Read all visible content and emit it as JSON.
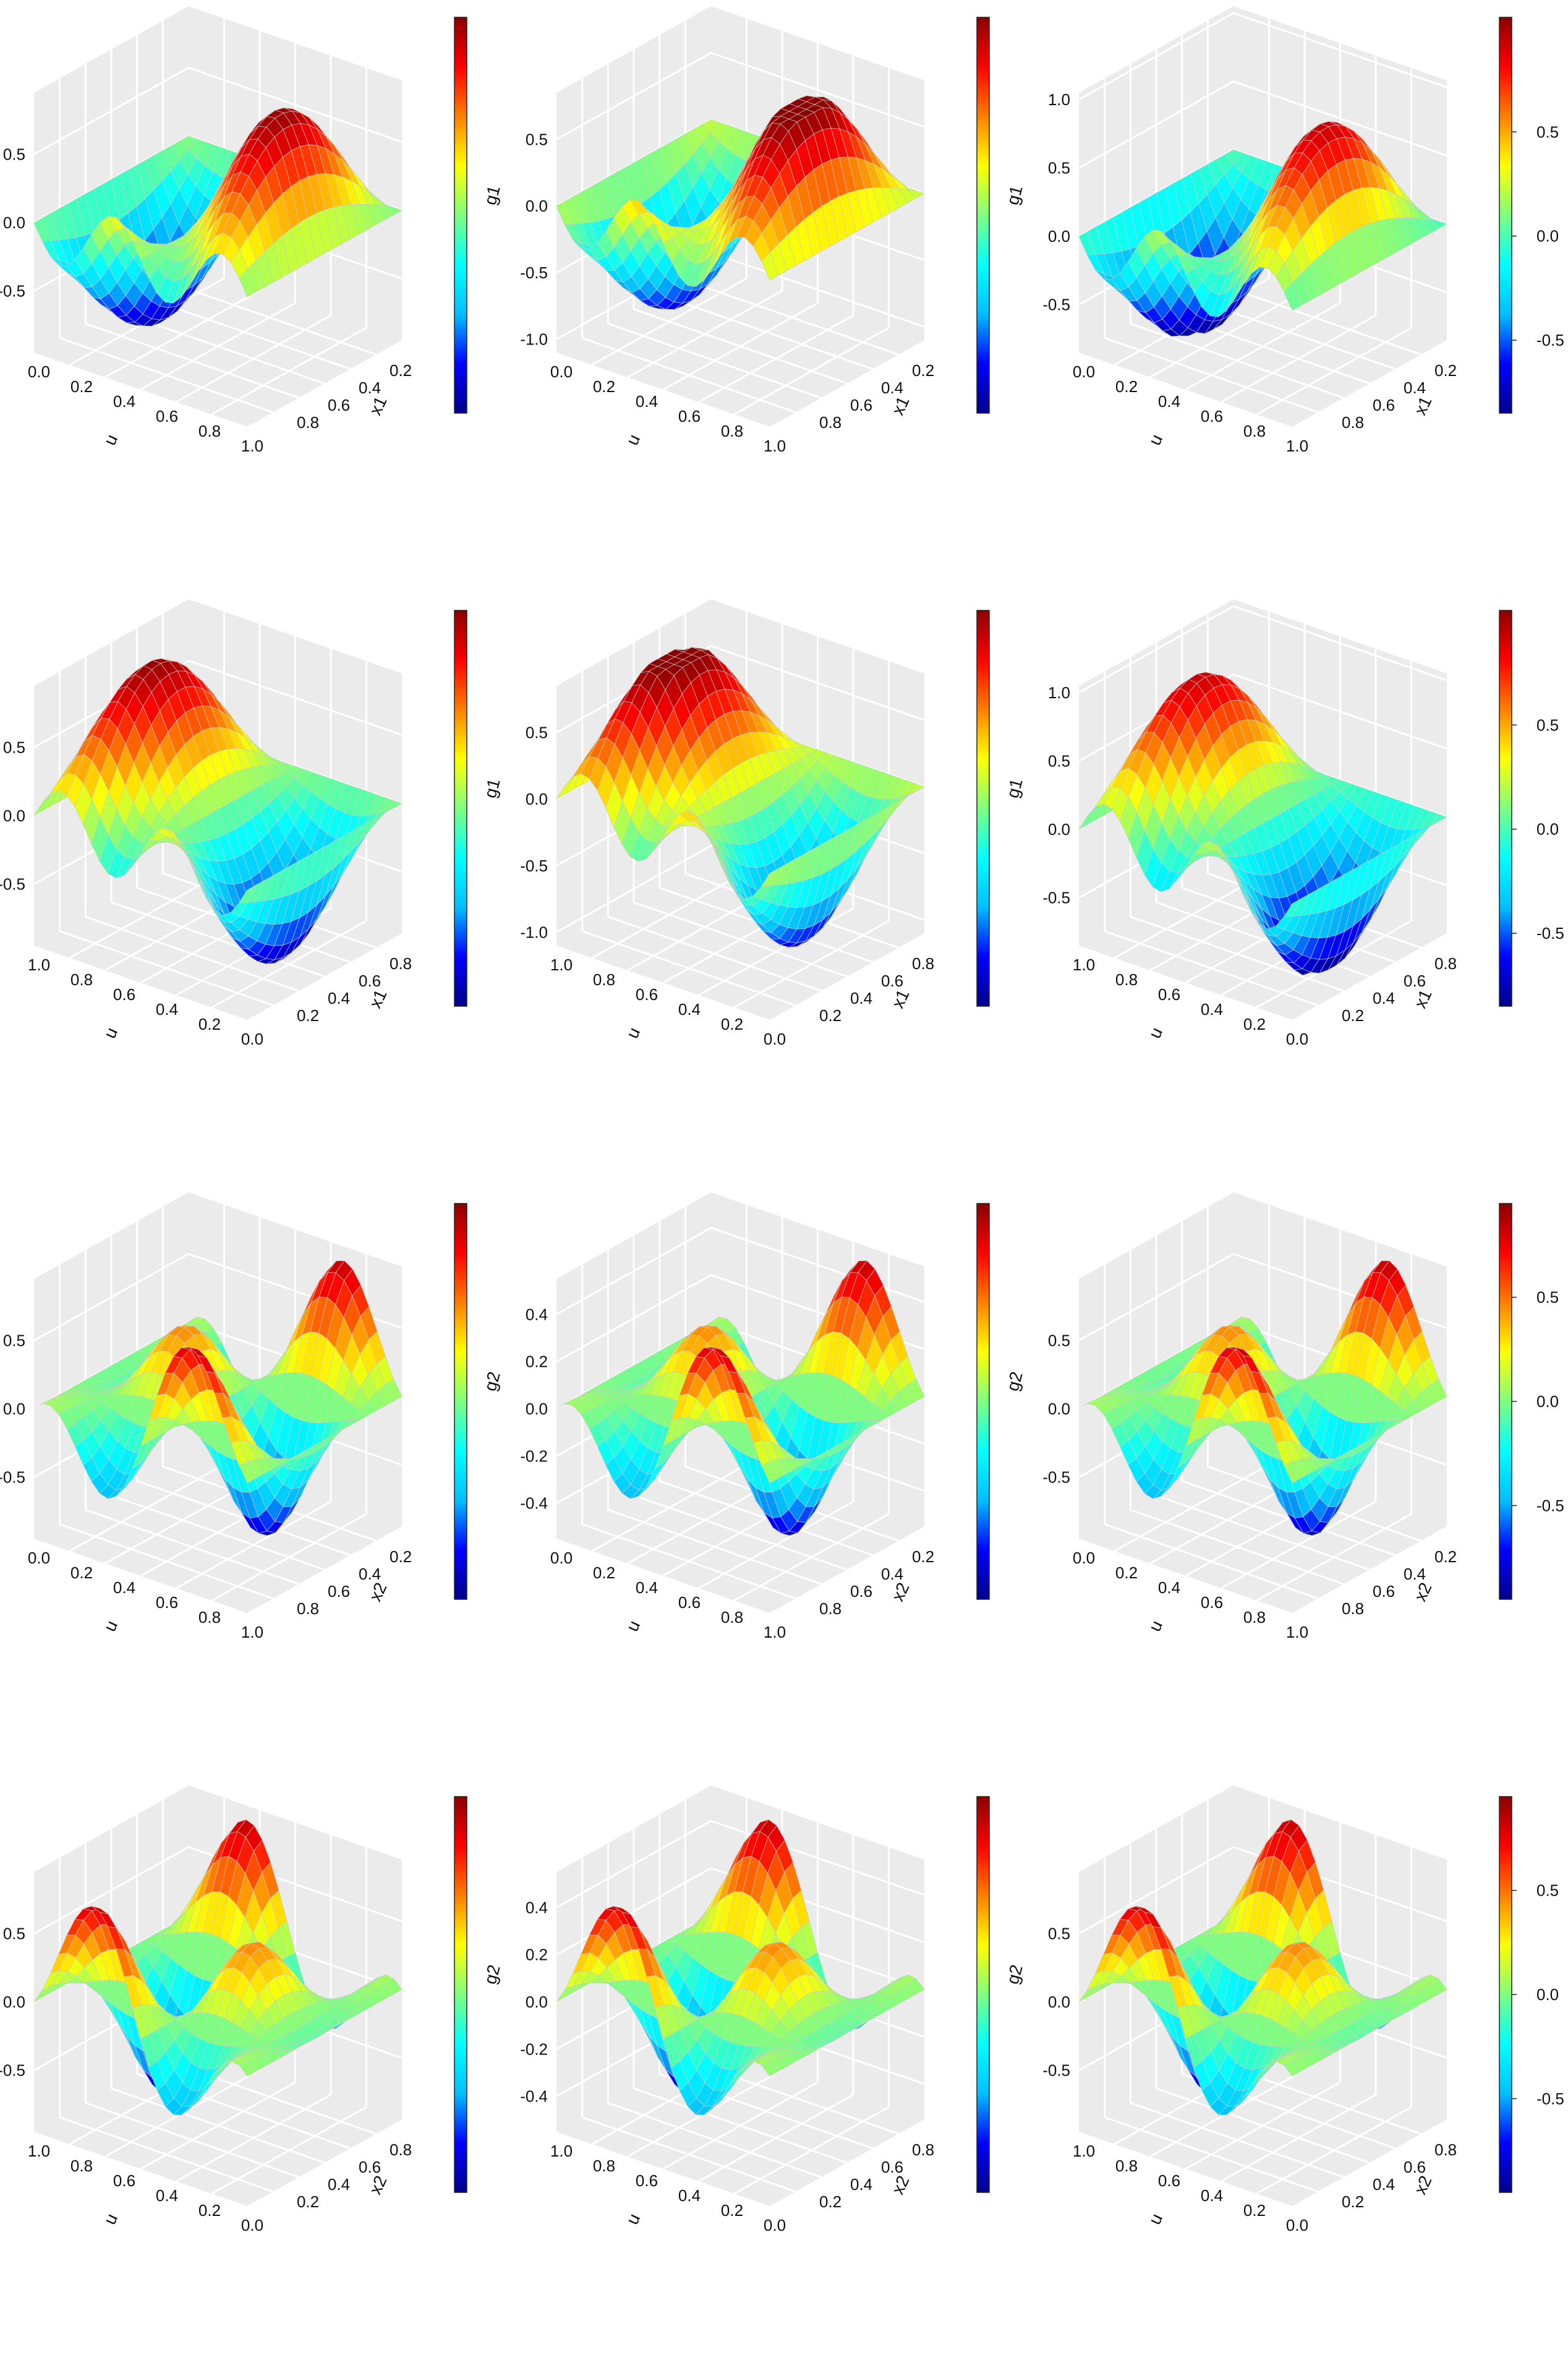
{
  "colors": {
    "pane": "#ebebeb",
    "gridline": "#ffffff",
    "mesh": "#c8c8c8",
    "colormap": [
      "#00008b",
      "#0000ff",
      "#00bfff",
      "#00ffff",
      "#7fff7f",
      "#ffff00",
      "#ff7f00",
      "#ff0000",
      "#8b0000"
    ]
  },
  "chart_data": [
    {
      "type": "surface",
      "row": 1,
      "col": 1,
      "zlabel": "g1",
      "xlabel": "u",
      "ylabel": "x1",
      "u_ticks": [
        "0.0",
        "0.2",
        "0.4",
        "0.6",
        "0.8",
        "1.0"
      ],
      "x_ticks": [
        "0.2",
        "0.4",
        "0.6",
        "0.8"
      ],
      "z_ticks": [
        "-0.5",
        "0.0",
        "0.5"
      ],
      "z_tick_values": [
        -0.5,
        0.0,
        0.5
      ],
      "zlim": [
        -0.95,
        0.95
      ],
      "colorbar_ticks": [],
      "colorbar_tick_values": [],
      "u_reversed": true,
      "var": "g1"
    },
    {
      "type": "surface",
      "row": 1,
      "col": 2,
      "zlabel": "g1",
      "xlabel": "u",
      "ylabel": "x1",
      "u_ticks": [
        "0.0",
        "0.2",
        "0.4",
        "0.6",
        "0.8",
        "1.0"
      ],
      "x_ticks": [
        "0.2",
        "0.4",
        "0.6",
        "0.8"
      ],
      "z_ticks": [
        "-1.0",
        "-0.5",
        "0.0",
        "0.5"
      ],
      "z_tick_values": [
        -1.0,
        -0.5,
        0.0,
        0.5
      ],
      "zlim": [
        -1.1,
        0.85
      ],
      "colorbar_ticks": [],
      "colorbar_tick_values": [],
      "u_reversed": true,
      "var": "g1"
    },
    {
      "type": "surface",
      "row": 1,
      "col": 3,
      "zlabel": "g1",
      "xlabel": "u",
      "ylabel": "x1",
      "u_ticks": [
        "0.0",
        "0.2",
        "0.4",
        "0.6",
        "0.8",
        "1.0"
      ],
      "x_ticks": [
        "0.2",
        "0.4",
        "0.6",
        "0.8"
      ],
      "z_ticks": [
        "-0.5",
        "0.0",
        "0.5",
        "1.0"
      ],
      "z_tick_values": [
        -0.5,
        0.0,
        0.5,
        1.0
      ],
      "zlim": [
        -0.85,
        1.05
      ],
      "colorbar_ticks": [
        "-0.5",
        "0.0",
        "0.5"
      ],
      "colorbar_tick_values": [
        -0.5,
        0.0,
        0.5
      ],
      "u_reversed": true,
      "var": "g1"
    },
    {
      "type": "surface",
      "row": 2,
      "col": 1,
      "zlabel": "g1",
      "xlabel": "u",
      "ylabel": "x1",
      "u_ticks": [
        "0.0",
        "0.2",
        "0.4",
        "0.6",
        "0.8",
        "1.0"
      ],
      "x_ticks": [
        "0.2",
        "0.4",
        "0.6",
        "0.8"
      ],
      "z_ticks": [
        "-0.5",
        "0.0",
        "0.5"
      ],
      "z_tick_values": [
        -0.5,
        0.0,
        0.5
      ],
      "zlim": [
        -0.95,
        0.95
      ],
      "colorbar_ticks": [],
      "colorbar_tick_values": [],
      "u_reversed": false,
      "var": "g1"
    },
    {
      "type": "surface",
      "row": 2,
      "col": 2,
      "zlabel": "g1",
      "xlabel": "u",
      "ylabel": "x1",
      "u_ticks": [
        "0.0",
        "0.2",
        "0.4",
        "0.6",
        "0.8",
        "1.0"
      ],
      "x_ticks": [
        "0.2",
        "0.4",
        "0.6",
        "0.8"
      ],
      "z_ticks": [
        "-1.0",
        "-0.5",
        "0.0",
        "0.5"
      ],
      "z_tick_values": [
        -1.0,
        -0.5,
        0.0,
        0.5
      ],
      "zlim": [
        -1.1,
        0.85
      ],
      "colorbar_ticks": [],
      "colorbar_tick_values": [],
      "u_reversed": false,
      "var": "g1"
    },
    {
      "type": "surface",
      "row": 2,
      "col": 3,
      "zlabel": "g1",
      "xlabel": "u",
      "ylabel": "x1",
      "u_ticks": [
        "0.0",
        "0.2",
        "0.4",
        "0.6",
        "0.8",
        "1.0"
      ],
      "x_ticks": [
        "0.2",
        "0.4",
        "0.6",
        "0.8"
      ],
      "z_ticks": [
        "-0.5",
        "0.0",
        "0.5",
        "1.0"
      ],
      "z_tick_values": [
        -0.5,
        0.0,
        0.5,
        1.0
      ],
      "zlim": [
        -0.85,
        1.05
      ],
      "colorbar_ticks": [
        "-0.5",
        "0.0",
        "0.5"
      ],
      "colorbar_tick_values": [
        -0.5,
        0.0,
        0.5
      ],
      "u_reversed": false,
      "var": "g1"
    },
    {
      "type": "surface",
      "row": 3,
      "col": 1,
      "zlabel": "g2",
      "xlabel": "u",
      "ylabel": "x2",
      "u_ticks": [
        "0.0",
        "0.2",
        "0.4",
        "0.6",
        "0.8",
        "1.0"
      ],
      "x_ticks": [
        "0.2",
        "0.4",
        "0.6",
        "0.8"
      ],
      "z_ticks": [
        "-0.5",
        "0.0",
        "0.5"
      ],
      "z_tick_values": [
        -0.5,
        0.0,
        0.5
      ],
      "zlim": [
        -0.95,
        0.95
      ],
      "colorbar_ticks": [],
      "colorbar_tick_values": [],
      "u_reversed": true,
      "var": "g2"
    },
    {
      "type": "surface",
      "row": 3,
      "col": 2,
      "zlabel": "g2",
      "xlabel": "u",
      "ylabel": "x2",
      "u_ticks": [
        "0.0",
        "0.2",
        "0.4",
        "0.6",
        "0.8",
        "1.0"
      ],
      "x_ticks": [
        "0.2",
        "0.4",
        "0.6",
        "0.8"
      ],
      "z_ticks": [
        "-0.4",
        "-0.2",
        "0.0",
        "0.2",
        "0.4"
      ],
      "z_tick_values": [
        -0.4,
        -0.2,
        0.0,
        0.2,
        0.4
      ],
      "zlim": [
        -0.55,
        0.55
      ],
      "colorbar_ticks": [],
      "colorbar_tick_values": [],
      "u_reversed": true,
      "var": "g2"
    },
    {
      "type": "surface",
      "row": 3,
      "col": 3,
      "zlabel": "g2",
      "xlabel": "u",
      "ylabel": "x2",
      "u_ticks": [
        "0.0",
        "0.2",
        "0.4",
        "0.6",
        "0.8",
        "1.0"
      ],
      "x_ticks": [
        "0.2",
        "0.4",
        "0.6",
        "0.8"
      ],
      "z_ticks": [
        "-0.5",
        "0.0",
        "0.5"
      ],
      "z_tick_values": [
        -0.5,
        0.0,
        0.5
      ],
      "zlim": [
        -0.95,
        0.95
      ],
      "colorbar_ticks": [
        "-0.5",
        "0.0",
        "0.5"
      ],
      "colorbar_tick_values": [
        -0.5,
        0.0,
        0.5
      ],
      "u_reversed": true,
      "var": "g2"
    },
    {
      "type": "surface",
      "row": 4,
      "col": 1,
      "zlabel": "g2",
      "xlabel": "u",
      "ylabel": "x2",
      "u_ticks": [
        "0.0",
        "0.2",
        "0.4",
        "0.6",
        "0.8",
        "1.0"
      ],
      "x_ticks": [
        "0.2",
        "0.4",
        "0.6",
        "0.8"
      ],
      "z_ticks": [
        "-0.5",
        "0.0",
        "0.5"
      ],
      "z_tick_values": [
        -0.5,
        0.0,
        0.5
      ],
      "zlim": [
        -0.95,
        0.95
      ],
      "colorbar_ticks": [],
      "colorbar_tick_values": [],
      "u_reversed": false,
      "var": "g2"
    },
    {
      "type": "surface",
      "row": 4,
      "col": 2,
      "zlabel": "g2",
      "xlabel": "u",
      "ylabel": "x2",
      "u_ticks": [
        "0.0",
        "0.2",
        "0.4",
        "0.6",
        "0.8",
        "1.0"
      ],
      "x_ticks": [
        "0.2",
        "0.4",
        "0.6",
        "0.8"
      ],
      "z_ticks": [
        "-0.4",
        "-0.2",
        "0.0",
        "0.2",
        "0.4"
      ],
      "z_tick_values": [
        -0.4,
        -0.2,
        0.0,
        0.2,
        0.4
      ],
      "zlim": [
        -0.55,
        0.55
      ],
      "colorbar_ticks": [],
      "colorbar_tick_values": [],
      "u_reversed": false,
      "var": "g2"
    },
    {
      "type": "surface",
      "row": 4,
      "col": 3,
      "zlabel": "g2",
      "xlabel": "u",
      "ylabel": "x2",
      "u_ticks": [
        "0.0",
        "0.2",
        "0.4",
        "0.6",
        "0.8",
        "1.0"
      ],
      "x_ticks": [
        "0.2",
        "0.4",
        "0.6",
        "0.8"
      ],
      "z_ticks": [
        "-0.5",
        "0.0",
        "0.5"
      ],
      "z_tick_values": [
        -0.5,
        0.0,
        0.5
      ],
      "zlim": [
        -0.95,
        0.95
      ],
      "colorbar_ticks": [
        "-0.5",
        "0.0",
        "0.5"
      ],
      "colorbar_tick_values": [
        -0.5,
        0.0,
        0.5
      ],
      "u_reversed": false,
      "var": "g2"
    }
  ]
}
